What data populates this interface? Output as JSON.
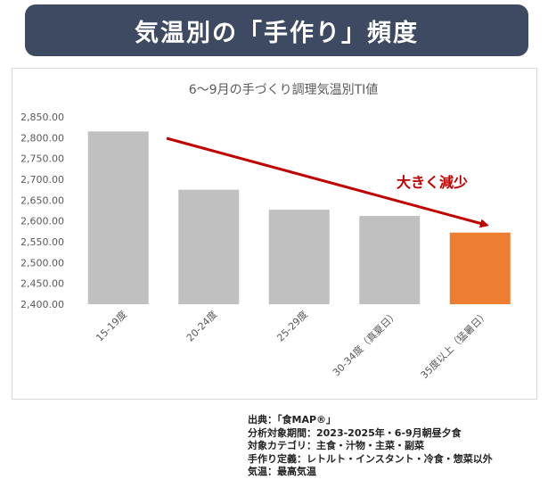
{
  "header": {
    "title": "気温別の「手作り」頻度"
  },
  "chart_data": {
    "type": "bar",
    "title": "6〜9月の手づくり調理気温別TI値",
    "categories": [
      "15-19度",
      "20-24度",
      "25-29度",
      "30-34度（真夏日）",
      "35度以上（猛暑日）"
    ],
    "values": [
      2815,
      2675,
      2627,
      2612,
      2572
    ],
    "ylim": [
      2400,
      2850
    ],
    "yticks": [
      "2,400.00",
      "2,450.00",
      "2,500.00",
      "2,550.00",
      "2,600.00",
      "2,650.00",
      "2,700.00",
      "2,750.00",
      "2,800.00",
      "2,850.00"
    ],
    "bar_color": "#c0c0c0",
    "highlight_color": "#ed7d31",
    "highlight_index": 4,
    "grid": false,
    "annotation": {
      "text": "大きく減少",
      "color": "#c00000"
    }
  },
  "source_notes": [
    "出典：「食MAP®」",
    "分析対象期間：2023-2025年・6-9月朝昼夕食",
    "対象カテゴリ：主食・汁物・主菜・副菜",
    "手作り定義：レトルト・インスタント・冷食・惣菜以外",
    "気温：最高気温"
  ]
}
